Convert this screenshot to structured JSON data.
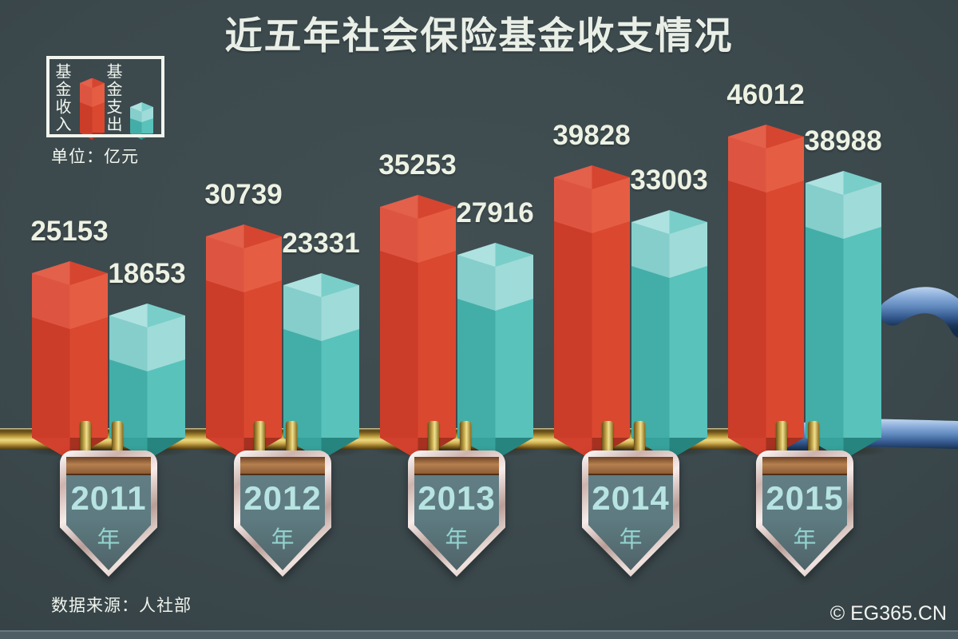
{
  "title": "近五年社会保险基金收支情况",
  "legend": {
    "income_label": "基金收入",
    "expense_label": "基金支出",
    "unit_label": "单位：亿元"
  },
  "chart_data": {
    "type": "bar",
    "title": "近五年社会保险基金收支情况",
    "unit": "亿元",
    "categories": [
      "2011",
      "2012",
      "2013",
      "2014",
      "2015"
    ],
    "category_suffix": "年",
    "series": [
      {
        "name": "基金收入",
        "color": "#da4830",
        "values": [
          25153,
          30739,
          35253,
          39828,
          46012
        ]
      },
      {
        "name": "基金支出",
        "color": "#58c2bb",
        "values": [
          18653,
          23331,
          27916,
          33003,
          38988
        ]
      }
    ],
    "value_labels": true,
    "legend_position": "top-left",
    "baseline": "timeline-rod"
  },
  "source_label": "数据来源：人社部",
  "copyright_label": "© EG365.CN",
  "colors": {
    "background": "#3c494d",
    "title_text": "#e9efe6",
    "value_text": "#edf2e3",
    "income_front": "#da4830",
    "income_side": "#cb3c29",
    "income_band_front": "#e55e43",
    "income_band_side": "#dd5540",
    "income_top_light": "#e3604a",
    "income_top_dark": "#d6452f",
    "income_bottom_light": "#d2412e",
    "income_bottom_dark": "#a63120",
    "expense_front": "#58c2bb",
    "expense_side": "#43aea7",
    "expense_band_front": "#9fdbd8",
    "expense_band_side": "#85cecb",
    "expense_top_light": "#aee2e0",
    "expense_top_dark": "#79cec9",
    "expense_bottom_light": "#36a29b",
    "expense_bottom_dark": "#27857f",
    "rod_gold": "#d8b74e",
    "cane_blue": "#5f88bc",
    "shield_panel": "#5d7b81",
    "shield_copper": "#b5804f",
    "year_text": "#b7e4e2",
    "year_suffix_text": "#93d2cd"
  }
}
